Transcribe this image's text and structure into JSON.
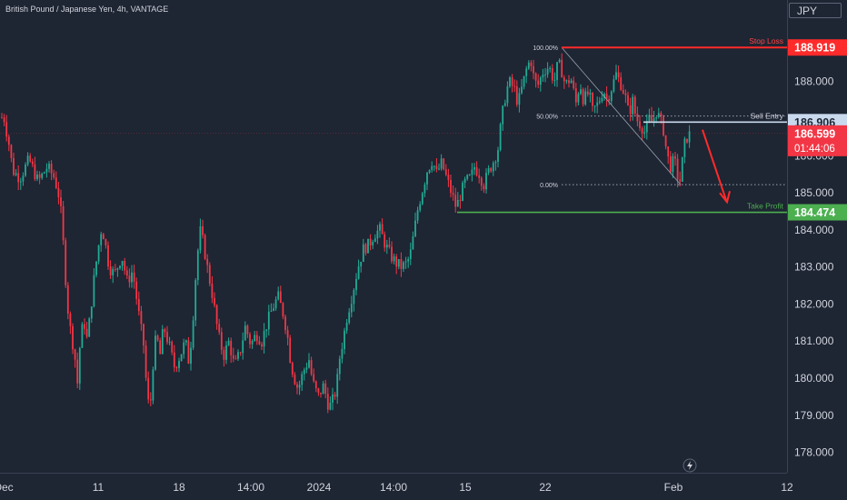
{
  "symbol": {
    "title": "British Pound / Japanese Yen, 4h, VANTAGE"
  },
  "currency": "JPY",
  "colors": {
    "background": "#1e2533",
    "up": "#22ab94",
    "down": "#f23645",
    "red_line": "#ff2b2b",
    "green_line": "#4caf50",
    "entry_line": "#c9d9ee",
    "axis_text": "#d1d4dc",
    "grid_dot": "#9aa3b2"
  },
  "chart_data": {
    "type": "candlestick",
    "title": "British Pound / Japanese Yen, 4h, VANTAGE",
    "y_axis": {
      "ylim": [
        177.45,
        190.2
      ],
      "ticks": [
        "178.000",
        "179.000",
        "180.000",
        "181.000",
        "182.000",
        "183.000",
        "184.000",
        "185.000",
        "186.000",
        "187.000",
        "188.000"
      ]
    },
    "x_axis": {
      "ticks": [
        "Dec",
        "11",
        "18",
        "14:00",
        "2024",
        "14:00",
        "15",
        "22",
        "Feb",
        "12"
      ]
    },
    "path": [
      [
        0,
        186.7
      ],
      [
        3,
        187.2
      ],
      [
        10,
        186.3
      ],
      [
        14,
        185.6
      ],
      [
        22,
        185.4
      ],
      [
        32,
        185.9
      ],
      [
        42,
        185.3
      ],
      [
        52,
        185.7
      ],
      [
        60,
        185.4
      ],
      [
        66,
        184.8
      ],
      [
        70,
        183.5
      ],
      [
        74,
        182.0
      ],
      [
        78,
        181.2
      ],
      [
        82,
        180.7
      ],
      [
        85,
        179.8
      ],
      [
        88,
        180.9
      ],
      [
        92,
        181.6
      ],
      [
        96,
        181.0
      ],
      [
        100,
        181.9
      ],
      [
        104,
        182.8
      ],
      [
        108,
        183.5
      ],
      [
        112,
        184.1
      ],
      [
        116,
        183.6
      ],
      [
        120,
        183.0
      ],
      [
        126,
        182.8
      ],
      [
        134,
        183.3
      ],
      [
        140,
        182.6
      ],
      [
        146,
        182.9
      ],
      [
        150,
        182.2
      ],
      [
        154,
        181.5
      ],
      [
        158,
        180.9
      ],
      [
        162,
        179.5
      ],
      [
        165,
        179.1
      ],
      [
        168,
        180.3
      ],
      [
        172,
        181.2
      ],
      [
        176,
        180.6
      ],
      [
        180,
        181.4
      ],
      [
        186,
        180.9
      ],
      [
        192,
        180.3
      ],
      [
        198,
        180.6
      ],
      [
        204,
        181.0
      ],
      [
        208,
        180.4
      ],
      [
        212,
        181.5
      ],
      [
        216,
        183.0
      ],
      [
        220,
        184.0
      ],
      [
        224,
        183.6
      ],
      [
        228,
        183.0
      ],
      [
        234,
        182.2
      ],
      [
        240,
        181.2
      ],
      [
        246,
        180.6
      ],
      [
        252,
        181.0
      ],
      [
        258,
        180.3
      ],
      [
        264,
        180.7
      ],
      [
        270,
        181.4
      ],
      [
        276,
        180.9
      ],
      [
        282,
        181.2
      ],
      [
        288,
        181.0
      ],
      [
        294,
        181.5
      ],
      [
        300,
        181.9
      ],
      [
        306,
        182.2
      ],
      [
        312,
        181.7
      ],
      [
        316,
        181.2
      ],
      [
        320,
        180.4
      ],
      [
        324,
        180.0
      ],
      [
        328,
        179.7
      ],
      [
        334,
        180.2
      ],
      [
        340,
        180.5
      ],
      [
        344,
        179.9
      ],
      [
        350,
        179.5
      ],
      [
        356,
        179.8
      ],
      [
        362,
        179.2
      ],
      [
        366,
        179.4
      ],
      [
        370,
        179.7
      ],
      [
        374,
        180.6
      ],
      [
        378,
        181.1
      ],
      [
        382,
        181.7
      ],
      [
        388,
        182.3
      ],
      [
        394,
        183.0
      ],
      [
        400,
        183.5
      ],
      [
        406,
        183.6
      ],
      [
        412,
        183.9
      ],
      [
        418,
        184.0
      ],
      [
        424,
        183.6
      ],
      [
        430,
        183.3
      ],
      [
        436,
        183.1
      ],
      [
        442,
        183.0
      ],
      [
        448,
        183.1
      ],
      [
        452,
        183.4
      ],
      [
        456,
        184.0
      ],
      [
        460,
        184.6
      ],
      [
        466,
        185.2
      ],
      [
        470,
        185.6
      ],
      [
        476,
        185.9
      ],
      [
        480,
        185.5
      ],
      [
        486,
        185.8
      ],
      [
        490,
        185.5
      ],
      [
        494,
        185.2
      ],
      [
        498,
        184.9
      ],
      [
        502,
        184.6
      ],
      [
        506,
        184.9
      ],
      [
        512,
        185.3
      ],
      [
        518,
        185.4
      ],
      [
        522,
        185.7
      ],
      [
        528,
        185.5
      ],
      [
        532,
        185.2
      ],
      [
        538,
        185.6
      ],
      [
        544,
        185.9
      ],
      [
        548,
        186.2
      ],
      [
        552,
        187.0
      ],
      [
        556,
        187.6
      ],
      [
        560,
        188.0
      ],
      [
        566,
        187.8
      ],
      [
        570,
        187.4
      ],
      [
        574,
        187.8
      ],
      [
        580,
        188.4
      ],
      [
        584,
        188.6
      ],
      [
        588,
        188.0
      ],
      [
        592,
        187.9
      ],
      [
        598,
        188.3
      ],
      [
        604,
        188.4
      ],
      [
        610,
        188.0
      ],
      [
        614,
        188.5
      ],
      [
        618,
        188.3
      ],
      [
        622,
        187.9
      ],
      [
        628,
        188.1
      ],
      [
        634,
        187.4
      ],
      [
        638,
        188.0
      ],
      [
        642,
        187.5
      ],
      [
        648,
        187.7
      ],
      [
        652,
        187.2
      ],
      [
        658,
        187.4
      ],
      [
        664,
        187.8
      ],
      [
        668,
        187.5
      ],
      [
        674,
        187.9
      ],
      [
        678,
        188.2
      ],
      [
        684,
        187.9
      ],
      [
        688,
        187.6
      ],
      [
        692,
        187.1
      ],
      [
        696,
        187.5
      ],
      [
        700,
        187.0
      ],
      [
        706,
        186.8
      ],
      [
        710,
        186.6
      ],
      [
        714,
        187.0
      ],
      [
        718,
        186.9
      ],
      [
        722,
        187.2
      ],
      [
        726,
        187.0
      ],
      [
        730,
        186.7
      ],
      [
        734,
        186.0
      ],
      [
        738,
        185.7
      ],
      [
        742,
        185.9
      ],
      [
        746,
        185.4
      ],
      [
        749,
        185.3
      ],
      [
        752,
        186.2
      ],
      [
        756,
        186.5
      ],
      [
        760,
        186.6
      ]
    ],
    "fibonacci": [
      {
        "label": "100.00%",
        "value": 188.919
      },
      {
        "label": "50.00%",
        "value": 187.07
      },
      {
        "label": "0.00%",
        "value": 185.22
      }
    ],
    "levels": [
      {
        "label": "Stop Loss",
        "value": 188.919,
        "badge": "188.919",
        "color": "#ff2b2b"
      },
      {
        "label": "Sell Entry",
        "value": 186.906,
        "badge": "186.906",
        "color": "#c9d9ee"
      },
      {
        "label": "Take Profit",
        "value": 184.474,
        "badge": "184.474",
        "color": "#4caf50"
      }
    ],
    "current_price": {
      "value": "186.599",
      "countdown": "01:44:06"
    }
  }
}
